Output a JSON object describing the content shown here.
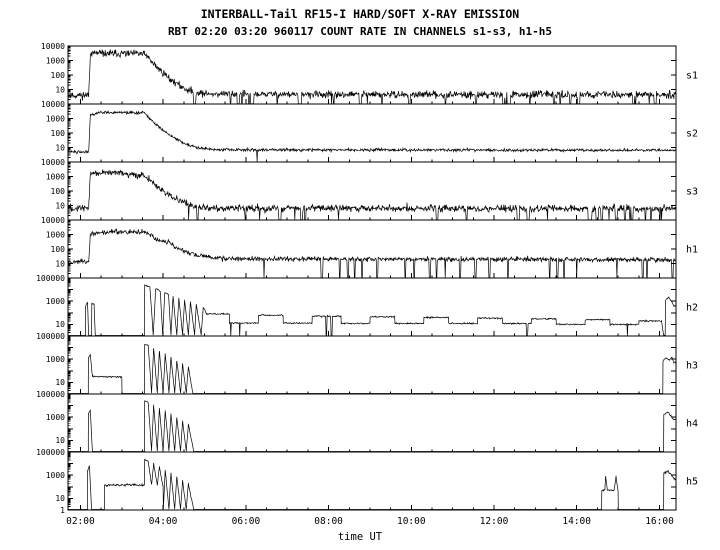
{
  "chart_data": {
    "type": "line",
    "title": "INTERBALL-Tail RF15-I HARD/SOFT X-RAY EMISSION",
    "subtitle": "RBT 02:20 03:20 960117  COUNT RATE IN CHANNELS s1-s3, h1-h5",
    "xlabel": "time UT",
    "x_unit": "hours UT",
    "xlim": [
      1.7,
      16.4
    ],
    "x_major_ticks": [
      2,
      4,
      6,
      8,
      10,
      12,
      14,
      16
    ],
    "x_major_labels": [
      "02:00",
      "04:00",
      "06:00",
      "08:00",
      "10:00",
      "12:00",
      "14:00",
      "16:00"
    ],
    "x_minor_step": 0.5,
    "yscale": "log",
    "grid": false,
    "legend": "none",
    "background": "#ffffff",
    "line_color": "#000000",
    "panels": [
      {
        "label": "s1",
        "ymax": 10000,
        "ylabels": [
          "10000",
          "1000",
          "100",
          "10",
          ""
        ],
        "noise": 0.12,
        "seed": 11,
        "dropouts": {
          "count": 38,
          "t0": 4.4,
          "t1": 16.3,
          "value": 1.05,
          "wmin": 0.015,
          "wmax": 0.06
        },
        "points": [
          [
            1.7,
            4
          ],
          [
            2.2,
            4
          ],
          [
            2.24,
            2800
          ],
          [
            2.35,
            3200
          ],
          [
            2.6,
            3000
          ],
          [
            3.0,
            3050
          ],
          [
            3.55,
            2800
          ],
          [
            3.62,
            1800
          ],
          [
            3.75,
            650
          ],
          [
            3.9,
            260
          ],
          [
            4.05,
            105
          ],
          [
            4.2,
            45
          ],
          [
            4.4,
            18
          ],
          [
            4.6,
            9
          ],
          [
            5.0,
            5
          ],
          [
            8.0,
            4.5
          ],
          [
            12.0,
            4.5
          ],
          [
            16.35,
            4.5
          ]
        ]
      },
      {
        "label": "s2",
        "ymax": 10000,
        "ylabels": [
          "10000",
          "1000",
          "100",
          "10",
          ""
        ],
        "noise": 0.05,
        "seed": 22,
        "dropouts": {
          "count": 1,
          "t0": 6.25,
          "t1": 6.3,
          "value": 1.05,
          "wmin": 0.015,
          "wmax": 0.02
        },
        "points": [
          [
            1.7,
            5
          ],
          [
            2.2,
            5
          ],
          [
            2.24,
            1800
          ],
          [
            2.45,
            2600
          ],
          [
            3.0,
            2550
          ],
          [
            3.55,
            2400
          ],
          [
            3.65,
            1200
          ],
          [
            3.8,
            450
          ],
          [
            4.0,
            160
          ],
          [
            4.2,
            60
          ],
          [
            4.5,
            20
          ],
          [
            4.8,
            10
          ],
          [
            5.3,
            7
          ],
          [
            16.35,
            6.5
          ]
        ]
      },
      {
        "label": "s3",
        "ymax": 10000,
        "ylabels": [
          "10000",
          "1000",
          "100",
          "10",
          ""
        ],
        "noise": 0.12,
        "seed": 33,
        "dropouts": {
          "count": 30,
          "t0": 4.3,
          "t1": 16.3,
          "value": 1.05,
          "wmin": 0.015,
          "wmax": 0.06
        },
        "points": [
          [
            1.7,
            7
          ],
          [
            2.2,
            7
          ],
          [
            2.24,
            1400
          ],
          [
            2.4,
            2000
          ],
          [
            2.8,
            1700
          ],
          [
            3.2,
            1400
          ],
          [
            3.55,
            1100
          ],
          [
            3.7,
            500
          ],
          [
            3.85,
            210
          ],
          [
            4.0,
            95
          ],
          [
            4.2,
            40
          ],
          [
            4.5,
            15
          ],
          [
            4.9,
            8
          ],
          [
            5.3,
            6.5
          ],
          [
            16.35,
            6
          ]
        ]
      },
      {
        "label": "h1",
        "ymax": 10000,
        "ylabels": [
          "10000",
          "1000",
          "100",
          "10",
          ""
        ],
        "noise": 0.08,
        "seed": 44,
        "dropouts": {
          "count": 26,
          "t0": 4.9,
          "t1": 16.3,
          "value": 1.05,
          "wmin": 0.015,
          "wmax": 0.04
        },
        "points": [
          [
            1.7,
            13
          ],
          [
            2.2,
            13
          ],
          [
            2.24,
            900
          ],
          [
            2.45,
            1400
          ],
          [
            3.0,
            1500
          ],
          [
            3.55,
            1450
          ],
          [
            3.7,
            900
          ],
          [
            3.85,
            420
          ],
          [
            4.0,
            330
          ],
          [
            4.15,
            300
          ],
          [
            4.3,
            130
          ],
          [
            4.6,
            55
          ],
          [
            5.0,
            30
          ],
          [
            5.5,
            22
          ],
          [
            16.35,
            18
          ]
        ]
      },
      {
        "label": "h2",
        "ymax": 100000,
        "ylabels": [
          "100000",
          "",
          "1000",
          "",
          "10",
          ""
        ],
        "noise": 0.03,
        "seed": 55,
        "dropouts": {
          "count": 6,
          "t0": 5.1,
          "t1": 16.0,
          "value": 1.05,
          "wmin": 0.015,
          "wmax": 0.03
        },
        "points": [
          [
            1.7,
            1.1
          ],
          [
            2.12,
            1.1
          ],
          [
            2.125,
            400
          ],
          [
            2.17,
            900
          ],
          [
            2.2,
            1.1
          ],
          [
            2.27,
            1.1
          ],
          [
            2.275,
            700
          ],
          [
            2.33,
            500
          ],
          [
            2.36,
            1.1
          ],
          [
            3.55,
            1.1
          ],
          [
            3.555,
            26000
          ],
          [
            3.68,
            17000
          ],
          [
            3.76,
            1.2
          ],
          [
            3.82,
            12000
          ],
          [
            3.93,
            7500
          ],
          [
            3.99,
            1.2
          ],
          [
            4.04,
            5500
          ],
          [
            4.13,
            3800
          ],
          [
            4.19,
            1.2
          ],
          [
            4.24,
            2800
          ],
          [
            4.33,
            1.2
          ],
          [
            4.38,
            2000
          ],
          [
            4.47,
            1.2
          ],
          [
            4.52,
            1400
          ],
          [
            4.61,
            1.2
          ],
          [
            4.66,
            950
          ],
          [
            4.76,
            1.2
          ],
          [
            4.8,
            600
          ],
          [
            4.92,
            1.2
          ],
          [
            4.97,
            300
          ],
          [
            5.05,
            80
          ],
          [
            5.6,
            80
          ],
          [
            5.605,
            13
          ],
          [
            6.3,
            13
          ],
          [
            6.305,
            60
          ],
          [
            6.9,
            60
          ],
          [
            6.905,
            13
          ],
          [
            7.6,
            13
          ],
          [
            7.605,
            50
          ],
          [
            8.3,
            50
          ],
          [
            8.305,
            12
          ],
          [
            9.0,
            12
          ],
          [
            9.005,
            45
          ],
          [
            9.6,
            45
          ],
          [
            9.605,
            12
          ],
          [
            10.3,
            12
          ],
          [
            10.305,
            40
          ],
          [
            10.9,
            40
          ],
          [
            10.905,
            12
          ],
          [
            11.6,
            12
          ],
          [
            11.605,
            35
          ],
          [
            12.2,
            35
          ],
          [
            12.205,
            12
          ],
          [
            12.9,
            12
          ],
          [
            12.905,
            30
          ],
          [
            13.5,
            30
          ],
          [
            13.505,
            10
          ],
          [
            14.2,
            10
          ],
          [
            14.205,
            26
          ],
          [
            14.8,
            26
          ],
          [
            14.805,
            10
          ],
          [
            15.5,
            10
          ],
          [
            15.505,
            20
          ],
          [
            16.05,
            20
          ],
          [
            16.1,
            1.2
          ],
          [
            16.14,
            1.2
          ],
          [
            16.145,
            1200
          ],
          [
            16.22,
            2200
          ],
          [
            16.3,
            900
          ],
          [
            16.35,
            400
          ]
        ]
      },
      {
        "label": "h3",
        "ymax": 100000,
        "ylabels": [
          "100000",
          "",
          "1000",
          "",
          "10",
          ""
        ],
        "noise": 0.03,
        "seed": 66,
        "dropouts": {
          "count": 0,
          "t0": 5,
          "t1": 16,
          "value": 1.05,
          "wmin": 0.015,
          "wmax": 0.03
        },
        "points": [
          [
            1.7,
            1.1
          ],
          [
            2.19,
            1.1
          ],
          [
            2.195,
            1400
          ],
          [
            2.24,
            2600
          ],
          [
            2.29,
            32
          ],
          [
            3.0,
            30
          ],
          [
            3.005,
            1.1
          ],
          [
            3.55,
            1.1
          ],
          [
            3.555,
            21000
          ],
          [
            3.64,
            15000
          ],
          [
            3.72,
            1.2
          ],
          [
            3.77,
            9000
          ],
          [
            3.86,
            1.2
          ],
          [
            3.91,
            5200
          ],
          [
            4.0,
            1.2
          ],
          [
            4.05,
            3000
          ],
          [
            4.14,
            1.2
          ],
          [
            4.19,
            1600
          ],
          [
            4.28,
            1.2
          ],
          [
            4.33,
            800
          ],
          [
            4.42,
            1.2
          ],
          [
            4.47,
            420
          ],
          [
            4.56,
            1.2
          ],
          [
            4.61,
            210
          ],
          [
            4.72,
            1.1
          ],
          [
            16.08,
            1.1
          ],
          [
            16.085,
            700
          ],
          [
            16.16,
            1300
          ],
          [
            16.24,
            800
          ],
          [
            16.3,
            1500
          ],
          [
            16.35,
            500
          ]
        ]
      },
      {
        "label": "h4",
        "ymax": 100000,
        "ylabels": [
          "100000",
          "",
          "1000",
          "",
          "10",
          ""
        ],
        "noise": 0.03,
        "seed": 77,
        "dropouts": {
          "count": 0,
          "t0": 5,
          "t1": 16,
          "value": 1.05,
          "wmin": 0.015,
          "wmax": 0.03
        },
        "points": [
          [
            1.7,
            1.1
          ],
          [
            2.19,
            1.1
          ],
          [
            2.195,
            2200
          ],
          [
            2.24,
            3800
          ],
          [
            2.29,
            1.1
          ],
          [
            3.55,
            1.1
          ],
          [
            3.555,
            26000
          ],
          [
            3.64,
            18000
          ],
          [
            3.72,
            1.2
          ],
          [
            3.77,
            10500
          ],
          [
            3.86,
            1.2
          ],
          [
            3.91,
            6200
          ],
          [
            4.0,
            1.2
          ],
          [
            4.05,
            3600
          ],
          [
            4.14,
            1.2
          ],
          [
            4.19,
            1900
          ],
          [
            4.28,
            1.2
          ],
          [
            4.33,
            950
          ],
          [
            4.42,
            1.2
          ],
          [
            4.47,
            480
          ],
          [
            4.56,
            1.2
          ],
          [
            4.61,
            240
          ],
          [
            4.74,
            1.1
          ],
          [
            16.1,
            1.1
          ],
          [
            16.105,
            1600
          ],
          [
            16.2,
            2800
          ],
          [
            16.28,
            1200
          ],
          [
            16.35,
            600
          ]
        ]
      },
      {
        "label": "h5",
        "ymax": 100000,
        "ylabels": [
          "100000",
          "",
          "1000",
          "",
          "10",
          "1"
        ],
        "noise": 0.04,
        "seed": 88,
        "dropouts": {
          "count": 0,
          "t0": 5,
          "t1": 16,
          "value": 1.05,
          "wmin": 0.015,
          "wmax": 0.03
        },
        "points": [
          [
            1.7,
            1.1
          ],
          [
            2.17,
            1.1
          ],
          [
            2.175,
            2800
          ],
          [
            2.22,
            6500
          ],
          [
            2.27,
            1.1
          ],
          [
            2.58,
            1.1
          ],
          [
            2.585,
            140
          ],
          [
            3.55,
            140
          ],
          [
            3.555,
            21000
          ],
          [
            3.64,
            15500
          ],
          [
            3.72,
            140
          ],
          [
            3.77,
            9200
          ],
          [
            3.86,
            140
          ],
          [
            3.91,
            5200
          ],
          [
            3.99,
            140
          ],
          [
            4.0,
            140
          ],
          [
            4.005,
            1.2
          ],
          [
            4.05,
            2900
          ],
          [
            4.14,
            1.2
          ],
          [
            4.19,
            1500
          ],
          [
            4.28,
            1.2
          ],
          [
            4.33,
            750
          ],
          [
            4.42,
            1.2
          ],
          [
            4.47,
            380
          ],
          [
            4.56,
            1.2
          ],
          [
            4.61,
            190
          ],
          [
            4.74,
            1.1
          ],
          [
            14.6,
            1.1
          ],
          [
            14.605,
            45
          ],
          [
            14.68,
            55
          ],
          [
            14.7,
            850
          ],
          [
            14.74,
            50
          ],
          [
            14.9,
            48
          ],
          [
            14.95,
            700
          ],
          [
            15.0,
            45
          ],
          [
            15.005,
            1.1
          ],
          [
            16.1,
            1.1
          ],
          [
            16.105,
            1300
          ],
          [
            16.2,
            2400
          ],
          [
            16.3,
            900
          ],
          [
            16.35,
            500
          ]
        ]
      }
    ]
  }
}
